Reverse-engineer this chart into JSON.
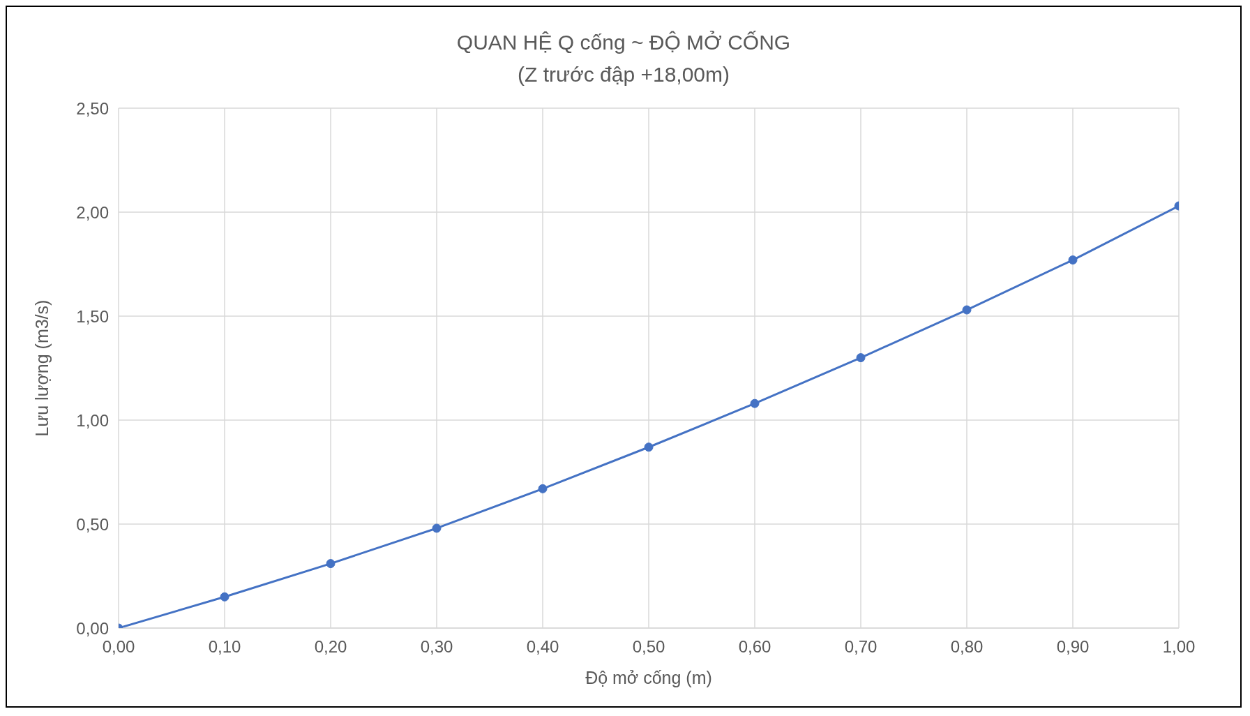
{
  "chart_data": {
    "type": "line",
    "title": "QUAN HỆ Q cống ~ ĐỘ MỞ CỐNG",
    "subtitle": "(Z trước đập +18,00m)",
    "xlabel": "Độ mở cống (m)",
    "ylabel": "Lưu lượng (m3/s)",
    "x": [
      0,
      0.1,
      0.2,
      0.3,
      0.4,
      0.5,
      0.6,
      0.7,
      0.8,
      0.9,
      1.0
    ],
    "series": [
      {
        "color": "#4472c4",
        "values": [
          0,
          0.15,
          0.31,
          0.48,
          0.67,
          0.87,
          1.08,
          1.3,
          1.53,
          1.77,
          2.03
        ]
      }
    ],
    "xlim": [
      0,
      1
    ],
    "xticks": [
      {
        "value": 0,
        "label": "0,00"
      },
      {
        "value": 0.1,
        "label": "0,10"
      },
      {
        "value": 0.2,
        "label": "0,20"
      },
      {
        "value": 0.3,
        "label": "0,30"
      },
      {
        "value": 0.4,
        "label": "0,40"
      },
      {
        "value": 0.5,
        "label": "0,50"
      },
      {
        "value": 0.6,
        "label": "0,60"
      },
      {
        "value": 0.7,
        "label": "0,70"
      },
      {
        "value": 0.8,
        "label": "0,80"
      },
      {
        "value": 0.9,
        "label": "0,90"
      },
      {
        "value": 1,
        "label": "1,00"
      }
    ],
    "ylim": [
      0,
      2.5
    ],
    "yticks": [
      {
        "value": 0,
        "label": "0,00"
      },
      {
        "value": 0.5,
        "label": "0,50"
      },
      {
        "value": 1,
        "label": "1,00"
      },
      {
        "value": 1.5,
        "label": "1,50"
      },
      {
        "value": 2,
        "label": "2,00"
      },
      {
        "value": 2.5,
        "label": "2,50"
      }
    ],
    "grid": true,
    "marker": "circle",
    "line_style": "solid"
  }
}
